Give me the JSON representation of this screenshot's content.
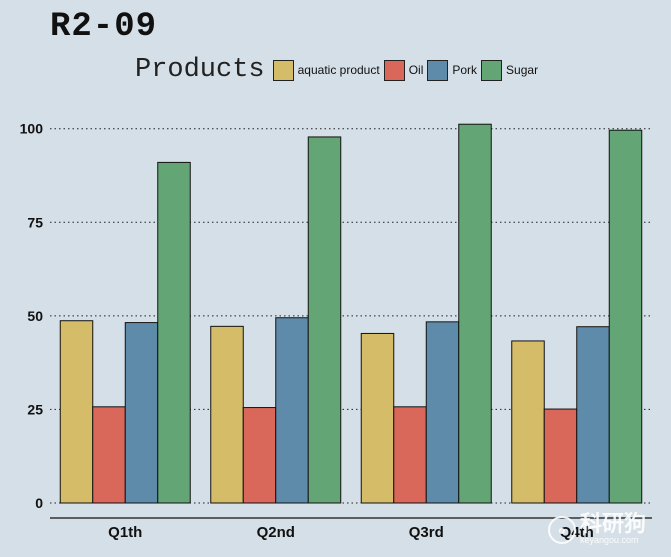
{
  "chart_data": {
    "type": "bar",
    "title": "R2-09",
    "legend_title": "Products",
    "legend_position": "top",
    "categories": [
      "Q1th",
      "Q2nd",
      "Q3rd",
      "Q4th"
    ],
    "series": [
      {
        "name": "aquatic product",
        "color": "#d4bc68",
        "values": [
          48.7,
          47.2,
          45.3,
          43.3
        ]
      },
      {
        "name": "Oil",
        "color": "#d9685b",
        "values": [
          25.7,
          25.5,
          25.7,
          25.1
        ]
      },
      {
        "name": "Pork",
        "color": "#5f8baa",
        "values": [
          48.2,
          49.5,
          48.4,
          47.1
        ]
      },
      {
        "name": "Sugar",
        "color": "#64a576",
        "values": [
          91.0,
          97.8,
          101.2,
          99.6
        ]
      }
    ],
    "ylim": [
      0,
      105
    ],
    "yticks": [
      0,
      25,
      50,
      75,
      100
    ],
    "grid": "horizontal-dotted",
    "xlabel": "",
    "ylabel": ""
  },
  "watermark": {
    "main": "科研狗",
    "sub": "keyangou.com",
    "icon": "dog-icon"
  }
}
